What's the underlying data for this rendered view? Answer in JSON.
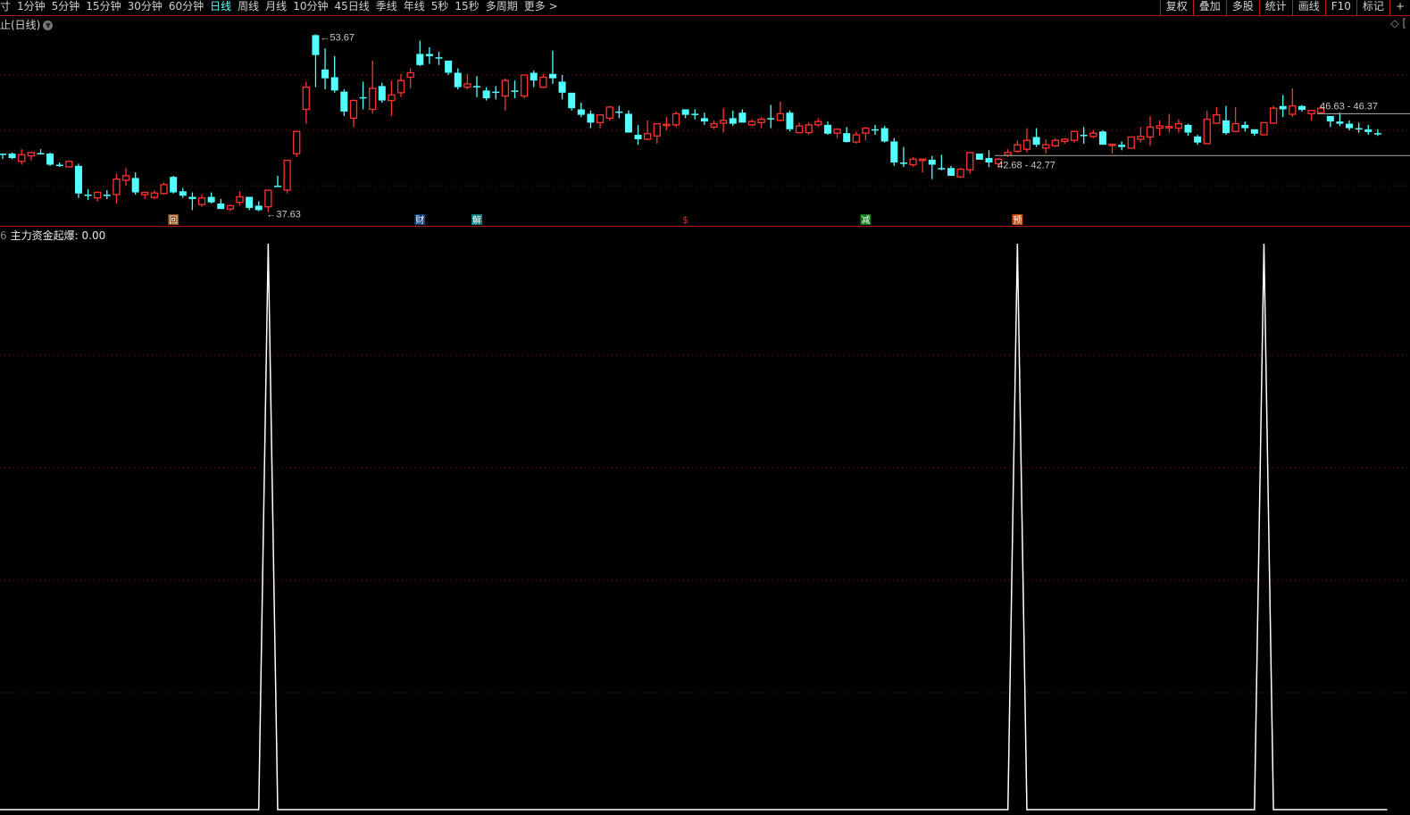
{
  "toolbar": {
    "left_items": [
      "寸",
      "1分钟",
      "5分钟",
      "15分钟",
      "30分钟",
      "60分钟",
      "日线",
      "周线",
      "月线",
      "10分钟",
      "45日线",
      "季线",
      "年线",
      "5秒",
      "15秒",
      "多周期",
      "更多 >"
    ],
    "active": "日线",
    "right_items": [
      "复权",
      "叠加",
      "多股",
      "统计",
      "画线",
      "F10",
      "标记",
      "+"
    ]
  },
  "panel_title": "止(日线)",
  "indicator": {
    "prefix": "6",
    "label": "主力资金起爆: 0.00"
  },
  "colors": {
    "up": "#ff3232",
    "down": "#54ffff",
    "grid": "#8a1010",
    "indicator_line": "#ffffff",
    "annotation": "#c8c8c8"
  },
  "chart_data": [
    {
      "type": "candlestick",
      "period": "日线",
      "ylim": [
        36.38,
        55.32
      ],
      "gridlines": [
        40,
        45,
        50
      ],
      "candle_format": [
        "open",
        "high",
        "low",
        "close"
      ],
      "candles": [
        [
          42.9,
          42.9,
          42.4,
          42.9
        ],
        [
          42.9,
          43.0,
          42.4,
          42.5
        ],
        [
          42.2,
          43.3,
          41.9,
          42.8
        ],
        [
          42.7,
          43.0,
          42.3,
          43.0
        ],
        [
          42.95,
          43.3,
          42.9,
          42.9
        ],
        [
          42.9,
          43.0,
          41.8,
          41.9
        ],
        [
          41.9,
          42.1,
          41.7,
          41.85
        ],
        [
          41.7,
          42.3,
          41.7,
          42.2
        ],
        [
          41.8,
          42.0,
          38.9,
          39.3
        ],
        [
          39.2,
          39.7,
          38.7,
          39.2
        ],
        [
          38.9,
          39.5,
          38.6,
          39.4
        ],
        [
          39.2,
          39.6,
          38.8,
          39.2
        ],
        [
          39.2,
          41.1,
          38.4,
          40.6
        ],
        [
          40.5,
          41.6,
          40.0,
          40.9
        ],
        [
          40.7,
          41.2,
          39.2,
          39.4
        ],
        [
          39.2,
          39.5,
          38.8,
          39.4
        ],
        [
          38.95,
          39.6,
          38.8,
          39.35
        ],
        [
          39.3,
          40.3,
          39.2,
          40.1
        ],
        [
          40.8,
          40.9,
          39.3,
          39.4
        ],
        [
          39.5,
          39.8,
          38.9,
          39.1
        ],
        [
          39.0,
          39.4,
          37.8,
          38.8
        ],
        [
          38.3,
          39.2,
          38.1,
          38.9
        ],
        [
          39.0,
          39.4,
          38.4,
          38.5
        ],
        [
          38.4,
          38.8,
          37.9,
          37.9
        ],
        [
          37.9,
          38.3,
          37.7,
          38.2
        ],
        [
          38.5,
          39.5,
          38.2,
          39.0
        ],
        [
          39.0,
          39.0,
          37.8,
          38.0
        ],
        [
          38.2,
          38.6,
          37.7,
          37.8
        ],
        [
          38.1,
          39.6,
          37.63,
          39.6
        ],
        [
          40.0,
          40.9,
          39.9,
          39.9
        ],
        [
          39.6,
          42.3,
          39.3,
          42.3
        ],
        [
          42.9,
          44.9,
          42.6,
          44.9
        ],
        [
          46.9,
          49.4,
          45.6,
          48.9
        ],
        [
          53.6,
          53.67,
          48.9,
          51.8
        ],
        [
          50.5,
          52.4,
          48.7,
          49.7
        ],
        [
          49.8,
          51.7,
          48.4,
          48.6
        ],
        [
          48.5,
          48.7,
          46.3,
          46.7
        ],
        [
          46.1,
          47.8,
          45.3,
          47.7
        ],
        [
          48.0,
          49.4,
          46.9,
          47.9
        ],
        [
          46.9,
          51.3,
          46.5,
          48.8
        ],
        [
          49.0,
          49.3,
          47.5,
          47.7
        ],
        [
          47.7,
          49.5,
          46.3,
          48.2
        ],
        [
          48.4,
          50.1,
          48.0,
          49.5
        ],
        [
          49.8,
          50.6,
          48.8,
          50.2
        ],
        [
          51.9,
          53.1,
          50.8,
          50.9
        ],
        [
          51.9,
          52.5,
          51.0,
          51.7
        ],
        [
          51.6,
          52.1,
          50.9,
          51.5
        ],
        [
          51.3,
          51.3,
          50.0,
          50.2
        ],
        [
          50.2,
          50.6,
          48.7,
          48.9
        ],
        [
          48.9,
          50.1,
          48.7,
          49.2
        ],
        [
          49.0,
          49.9,
          48.0,
          49.0
        ],
        [
          48.6,
          48.9,
          47.7,
          47.9
        ],
        [
          48.5,
          49.0,
          47.8,
          48.5
        ],
        [
          48.1,
          49.7,
          46.8,
          49.5
        ],
        [
          48.6,
          49.5,
          47.9,
          48.6
        ],
        [
          48.1,
          50.0,
          47.9,
          50.0
        ],
        [
          50.2,
          50.4,
          48.9,
          49.5
        ],
        [
          48.9,
          50.1,
          48.8,
          49.8
        ],
        [
          50.1,
          52.2,
          49.2,
          49.7
        ],
        [
          49.4,
          50.0,
          47.8,
          48.4
        ],
        [
          48.4,
          48.4,
          46.8,
          47.0
        ],
        [
          46.9,
          47.5,
          46.2,
          46.4
        ],
        [
          46.5,
          46.8,
          45.2,
          45.7
        ],
        [
          45.7,
          46.4,
          45.2,
          46.4
        ],
        [
          46.1,
          47.2,
          45.9,
          47.1
        ],
        [
          46.7,
          47.2,
          46.1,
          46.7
        ],
        [
          46.5,
          46.8,
          44.8,
          44.8
        ],
        [
          44.6,
          45.5,
          43.7,
          44.2
        ],
        [
          44.2,
          45.9,
          44.1,
          44.7
        ],
        [
          44.5,
          45.6,
          43.8,
          45.6
        ],
        [
          45.5,
          46.2,
          45.0,
          45.55
        ],
        [
          45.5,
          46.7,
          45.3,
          46.5
        ],
        [
          46.9,
          46.9,
          46.1,
          46.4
        ],
        [
          46.5,
          46.9,
          46.0,
          46.45
        ],
        [
          46.1,
          46.6,
          45.5,
          45.8
        ],
        [
          45.3,
          45.9,
          45.1,
          45.6
        ],
        [
          45.65,
          47.0,
          44.8,
          45.9
        ],
        [
          46.1,
          46.8,
          45.4,
          45.6
        ],
        [
          46.6,
          46.9,
          45.7,
          45.7
        ],
        [
          45.5,
          46.0,
          45.4,
          45.8
        ],
        [
          45.7,
          46.2,
          45.2,
          46.0
        ],
        [
          46.1,
          47.3,
          45.2,
          46.05
        ],
        [
          45.9,
          47.6,
          45.8,
          46.5
        ],
        [
          46.6,
          46.8,
          44.9,
          45.1
        ],
        [
          44.8,
          45.7,
          44.8,
          45.4
        ],
        [
          44.8,
          45.7,
          44.6,
          45.5
        ],
        [
          45.5,
          46.1,
          45.3,
          45.8
        ],
        [
          45.5,
          45.8,
          44.6,
          44.7
        ],
        [
          44.75,
          45.2,
          44.3,
          45.1
        ],
        [
          44.75,
          45.3,
          43.9,
          43.95
        ],
        [
          43.95,
          44.9,
          43.8,
          44.6
        ],
        [
          44.75,
          45.3,
          44.1,
          45.2
        ],
        [
          45.1,
          45.5,
          44.6,
          45.1
        ],
        [
          45.2,
          45.4,
          43.9,
          44.0
        ],
        [
          44.0,
          44.3,
          41.8,
          42.1
        ],
        [
          42.1,
          43.5,
          41.7,
          42.05
        ],
        [
          41.9,
          42.6,
          41.7,
          42.4
        ],
        [
          42.35,
          42.4,
          41.2,
          42.4
        ],
        [
          42.35,
          42.7,
          40.6,
          41.9
        ],
        [
          41.6,
          42.8,
          41.4,
          41.55
        ],
        [
          41.6,
          41.8,
          40.9,
          40.9
        ],
        [
          40.8,
          41.6,
          40.7,
          41.5
        ],
        [
          41.45,
          43.0,
          41.1,
          43.0
        ],
        [
          42.9,
          42.9,
          42.35,
          42.35
        ],
        [
          42.5,
          43.2,
          41.7,
          42.1
        ],
        [
          42.0,
          42.5,
          41.6,
          42.4
        ],
        [
          42.75,
          43.3,
          42.6,
          43.0
        ],
        [
          43.1,
          44.1,
          43.0,
          43.7
        ],
        [
          43.3,
          45.2,
          43.0,
          44.1
        ],
        [
          44.4,
          45.2,
          43.5,
          43.7
        ],
        [
          43.4,
          44.2,
          42.9,
          43.7
        ],
        [
          43.6,
          44.3,
          43.5,
          44.1
        ],
        [
          44.0,
          44.3,
          43.8,
          44.2
        ],
        [
          44.1,
          44.9,
          43.9,
          44.9
        ],
        [
          44.6,
          45.3,
          43.8,
          44.6
        ],
        [
          44.45,
          45.0,
          44.3,
          44.75
        ],
        [
          44.9,
          45.0,
          43.7,
          43.7
        ],
        [
          43.7,
          43.75,
          42.9,
          43.75
        ],
        [
          43.7,
          44.0,
          43.2,
          43.5
        ],
        [
          43.4,
          44.4,
          43.4,
          44.4
        ],
        [
          44.2,
          45.3,
          43.9,
          44.45
        ],
        [
          44.4,
          46.3,
          43.6,
          45.3
        ],
        [
          45.2,
          45.9,
          44.5,
          45.4
        ],
        [
          45.3,
          46.5,
          44.8,
          45.35
        ],
        [
          45.2,
          46.0,
          44.8,
          45.6
        ],
        [
          45.5,
          45.6,
          44.5,
          44.8
        ],
        [
          44.45,
          44.6,
          43.7,
          43.9
        ],
        [
          43.8,
          46.8,
          43.8,
          46.0
        ],
        [
          45.65,
          47.1,
          45.6,
          46.4
        ],
        [
          45.9,
          47.2,
          44.6,
          44.75
        ],
        [
          44.9,
          47.1,
          44.9,
          45.6
        ],
        [
          45.5,
          45.8,
          44.9,
          45.2
        ],
        [
          45.1,
          45.1,
          44.5,
          44.7
        ],
        [
          44.6,
          45.7,
          44.6,
          45.7
        ],
        [
          45.65,
          47.2,
          45.65,
          47.0
        ],
        [
          47.2,
          48.2,
          46.2,
          46.9
        ],
        [
          46.45,
          48.8,
          46.2,
          47.2
        ],
        [
          47.2,
          47.3,
          46.7,
          46.85
        ],
        [
          46.5,
          46.8,
          45.9,
          46.8
        ],
        [
          46.6,
          47.3,
          46.55,
          47.0
        ],
        [
          46.3,
          46.3,
          45.3,
          45.8
        ],
        [
          45.8,
          46.6,
          45.4,
          45.6
        ],
        [
          45.6,
          45.9,
          45.0,
          45.2
        ],
        [
          45.2,
          45.7,
          44.8,
          45.2
        ],
        [
          45.1,
          45.5,
          44.6,
          44.85
        ],
        [
          44.75,
          45.1,
          44.5,
          44.75
        ]
      ],
      "annotations": {
        "high": {
          "value": "53.67",
          "index": 33
        },
        "low": {
          "value": "37.63",
          "index": 28
        },
        "ranges": [
          {
            "label": "42.68 - 42.77",
            "price": 42.72,
            "from_index": 105
          },
          {
            "label": "46.63 - 46.37",
            "price": 46.5,
            "from_index": 139
          }
        ]
      },
      "event_markers": [
        {
          "glyph": "回",
          "index": 18,
          "bg": "#8a4a10",
          "fg": "#ffffff"
        },
        {
          "glyph": "财",
          "index": 44,
          "bg": "#143c78",
          "fg": "#ffffff"
        },
        {
          "glyph": "解",
          "index": 50,
          "bg": "#0f7a7a",
          "fg": "#ffffff"
        },
        {
          "glyph": "$",
          "index": 72,
          "bg": "",
          "fg": "#ff2020"
        },
        {
          "glyph": "减",
          "index": 91,
          "bg": "#0f7a1a",
          "fg": "#ffffff"
        },
        {
          "glyph": "预",
          "index": 107,
          "bg": "#c04a10",
          "fg": "#ffffff"
        }
      ]
    },
    {
      "type": "line",
      "series": [
        {
          "name": "主力资金起爆",
          "spikes_at_index": [
            28,
            107,
            133
          ]
        }
      ],
      "ylim": [
        0,
        1
      ]
    }
  ]
}
